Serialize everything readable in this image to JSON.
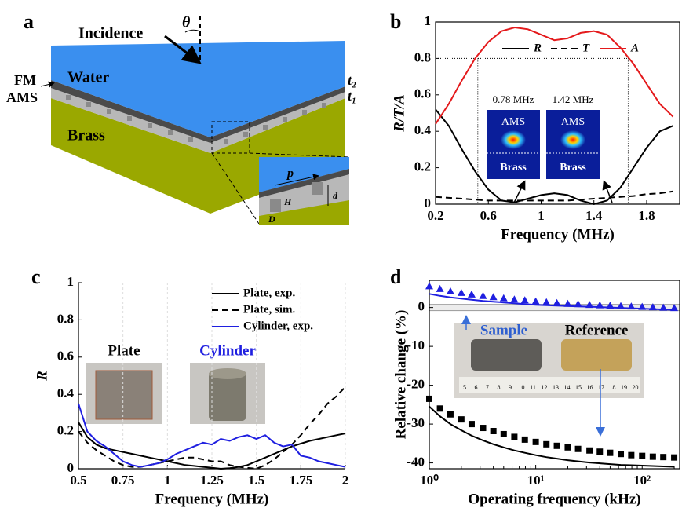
{
  "diagram": {
    "panel_label": "a",
    "incidence": "Incidence",
    "theta": "θ",
    "water": "Water",
    "fm": "FM",
    "ams": "AMS",
    "t2": "t₂",
    "t1": "t₁",
    "brass": "Brass",
    "zoom": {
      "p": "p",
      "H": "H",
      "d": "d",
      "D": "D"
    }
  },
  "chart_data": [
    {
      "type": "line",
      "panel_label": "b",
      "xlabel": "Frequency (MHz)",
      "ylabel": "R/T/A",
      "x": [
        0.2,
        0.3,
        0.4,
        0.5,
        0.6,
        0.7,
        0.8,
        0.9,
        1.0,
        1.1,
        1.2,
        1.3,
        1.4,
        1.5,
        1.6,
        1.7,
        1.8,
        1.9,
        2.0
      ],
      "xlim": [
        0.2,
        2.05
      ],
      "ylim": [
        0,
        1
      ],
      "xticks": [
        0.2,
        0.6,
        1,
        1.4,
        1.8
      ],
      "yticks": [
        0,
        0.2,
        0.4,
        0.6,
        0.8,
        1
      ],
      "frame": true,
      "grid": false,
      "legend": "upper center",
      "ref_lines": {
        "y": 0.8,
        "x": [
          0.52,
          1.66
        ]
      },
      "series": [
        {
          "name": "R",
          "color": "#000000",
          "style": "solid",
          "values": [
            0.52,
            0.43,
            0.3,
            0.18,
            0.08,
            0.02,
            0.01,
            0.03,
            0.05,
            0.06,
            0.05,
            0.02,
            0.0,
            0.02,
            0.09,
            0.2,
            0.31,
            0.4,
            0.43
          ]
        },
        {
          "name": "T",
          "color": "#000000",
          "style": "dashed",
          "values": [
            0.04,
            0.035,
            0.03,
            0.025,
            0.02,
            0.02,
            0.02,
            0.02,
            0.02,
            0.02,
            0.02,
            0.025,
            0.03,
            0.035,
            0.04,
            0.045,
            0.055,
            0.06,
            0.07
          ]
        },
        {
          "name": "A",
          "color": "#e41a1c",
          "style": "solid",
          "values": [
            0.44,
            0.55,
            0.68,
            0.8,
            0.89,
            0.95,
            0.97,
            0.96,
            0.93,
            0.9,
            0.91,
            0.94,
            0.95,
            0.93,
            0.86,
            0.77,
            0.66,
            0.55,
            0.48
          ]
        }
      ],
      "insets": [
        {
          "label": "0.78 MHz",
          "top": "AMS",
          "bottom": "Brass"
        },
        {
          "label": "1.42 MHz",
          "top": "AMS",
          "bottom": "Brass"
        }
      ]
    },
    {
      "type": "line",
      "panel_label": "c",
      "xlabel": "Frequency (MHz)",
      "ylabel": "R",
      "x": [
        0.5,
        0.55,
        0.6,
        0.65,
        0.7,
        0.75,
        0.8,
        0.85,
        0.9,
        0.95,
        1.0,
        1.05,
        1.1,
        1.15,
        1.2,
        1.25,
        1.3,
        1.35,
        1.4,
        1.45,
        1.5,
        1.55,
        1.6,
        1.65,
        1.7,
        1.75,
        1.8,
        1.85,
        1.9,
        1.95,
        2.0
      ],
      "xlim": [
        0.5,
        2
      ],
      "ylim": [
        0,
        1
      ],
      "xticks": [
        0.5,
        0.75,
        1,
        1.25,
        1.5,
        1.75,
        2
      ],
      "yticks": [
        0,
        0.2,
        0.4,
        0.6,
        0.8,
        1
      ],
      "frame": false,
      "grid": true,
      "legend": "upper right",
      "series": [
        {
          "name": "Plate, exp.",
          "color": "#000000",
          "style": "solid",
          "values": [
            0.25,
            0.17,
            0.13,
            0.11,
            0.1,
            0.09,
            0.08,
            0.07,
            0.06,
            0.05,
            0.04,
            0.03,
            0.02,
            0.015,
            0.01,
            0.005,
            0,
            0.003,
            0.01,
            0.02,
            0.04,
            0.06,
            0.08,
            0.1,
            0.12,
            0.135,
            0.15,
            0.16,
            0.17,
            0.18,
            0.19
          ]
        },
        {
          "name": "Plate, sim.",
          "color": "#000000",
          "style": "dashed",
          "values": [
            0.2,
            0.14,
            0.1,
            0.07,
            0.04,
            0.02,
            0.01,
            0.01,
            0.02,
            0.03,
            0.04,
            0.05,
            0.06,
            0.06,
            0.05,
            0.04,
            0.04,
            0.02,
            0.01,
            0.005,
            0,
            0.02,
            0.05,
            0.09,
            0.13,
            0.18,
            0.24,
            0.29,
            0.35,
            0.39,
            0.44
          ]
        },
        {
          "name": "Cylinder, exp.",
          "color": "#1f1fe0",
          "style": "solid",
          "values": [
            0.35,
            0.2,
            0.15,
            0.12,
            0.08,
            0.04,
            0.02,
            0.01,
            0.02,
            0.03,
            0.05,
            0.08,
            0.1,
            0.12,
            0.14,
            0.13,
            0.16,
            0.15,
            0.17,
            0.18,
            0.16,
            0.18,
            0.14,
            0.12,
            0.13,
            0.07,
            0.06,
            0.04,
            0.03,
            0.02,
            0.01
          ]
        }
      ],
      "insets": [
        {
          "label": "Plate",
          "color": "#000000"
        },
        {
          "label": "Cylinder",
          "color": "#1f1fe0"
        }
      ]
    },
    {
      "type": "line",
      "panel_label": "d",
      "xlabel": "Operating frequency (kHz)",
      "ylabel": "Relative change (%)",
      "x": [
        1,
        1.26,
        1.58,
        2,
        2.5,
        3.2,
        4,
        5,
        6.3,
        7.9,
        10,
        12.6,
        15.8,
        20,
        25,
        32,
        40,
        50,
        63,
        79,
        100,
        126,
        158,
        200
      ],
      "xlog": true,
      "xlim": [
        1,
        225
      ],
      "ylim": [
        -41.5,
        7
      ],
      "xticks": [
        {
          "value": 1,
          "label": "10⁰"
        },
        {
          "value": 10,
          "label": "10¹"
        },
        {
          "value": 100,
          "label": "10²"
        }
      ],
      "yticks": [
        0,
        -10,
        -20,
        -30,
        -40
      ],
      "frame": true,
      "grid": false,
      "series": [
        {
          "color": "#1f1fe0",
          "marker": "triangle",
          "values": [
            5.5,
            4.8,
            4.2,
            3.8,
            3.4,
            3.0,
            2.7,
            2.4,
            2.1,
            1.9,
            1.6,
            1.4,
            1.2,
            1.0,
            0.9,
            0.7,
            0.6,
            0.5,
            0.4,
            0.3,
            0.2,
            0.1,
            0.0,
            -0.1
          ]
        },
        {
          "color": "#1f1fe0",
          "style": "solid",
          "values": [
            3.5,
            3.0,
            2.6,
            2.3,
            2.0,
            1.7,
            1.5,
            1.3,
            1.1,
            0.9,
            0.7,
            0.6,
            0.5,
            0.4,
            0.3,
            0.2,
            0.1,
            0.0,
            -0.1,
            -0.2,
            -0.3,
            -0.4,
            -0.5,
            -0.6
          ]
        },
        {
          "color": "#000000",
          "marker": "square",
          "values": [
            -23.5,
            -26,
            -27.5,
            -28.8,
            -30,
            -31,
            -31.8,
            -32.6,
            -33.3,
            -34,
            -34.6,
            -35.2,
            -35.6,
            -36,
            -36.4,
            -36.8,
            -37.1,
            -37.4,
            -37.7,
            -38,
            -38.2,
            -38.4,
            -38.5,
            -38.6
          ]
        },
        {
          "color": "#000000",
          "style": "solid",
          "values": [
            -25.5,
            -28,
            -30,
            -31.6,
            -33,
            -34.2,
            -35.2,
            -36,
            -36.8,
            -37.4,
            -38,
            -38.5,
            -38.9,
            -39.3,
            -39.6,
            -39.9,
            -40.1,
            -40.3,
            -40.5,
            -40.6,
            -40.7,
            -40.8,
            -40.9,
            -41
          ]
        }
      ],
      "insets": {
        "sample": "Sample",
        "reference": "Reference",
        "ruler": [
          "5",
          "6",
          "7",
          "8",
          "9",
          "10",
          "11",
          "12",
          "13",
          "14",
          "15",
          "16",
          "17",
          "18",
          "19",
          "20"
        ]
      }
    }
  ]
}
